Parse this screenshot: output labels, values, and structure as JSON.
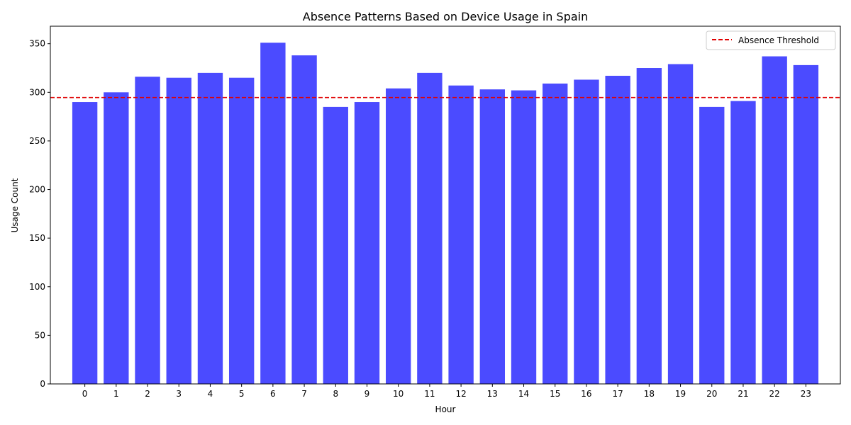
{
  "chart_data": {
    "type": "bar",
    "title": "Absence Patterns Based on Device Usage in Spain",
    "xlabel": "Hour",
    "ylabel": "Usage Count",
    "categories": [
      "0",
      "1",
      "2",
      "3",
      "4",
      "5",
      "6",
      "7",
      "8",
      "9",
      "10",
      "11",
      "12",
      "13",
      "14",
      "15",
      "16",
      "17",
      "18",
      "19",
      "20",
      "21",
      "22",
      "23"
    ],
    "values": [
      290,
      300,
      316,
      315,
      320,
      315,
      351,
      338,
      285,
      290,
      304,
      320,
      307,
      303,
      302,
      309,
      313,
      317,
      325,
      329,
      285,
      291,
      337,
      328
    ],
    "ylim": [
      0,
      368
    ],
    "yticks": [
      0,
      50,
      100,
      150,
      200,
      250,
      300,
      350
    ],
    "bar_color": "#4b4bff",
    "threshold": {
      "name": "Absence Threshold",
      "value": 294.6,
      "color": "#e00000",
      "style": "dashed"
    },
    "legend_position": "top-right",
    "grid": false
  }
}
